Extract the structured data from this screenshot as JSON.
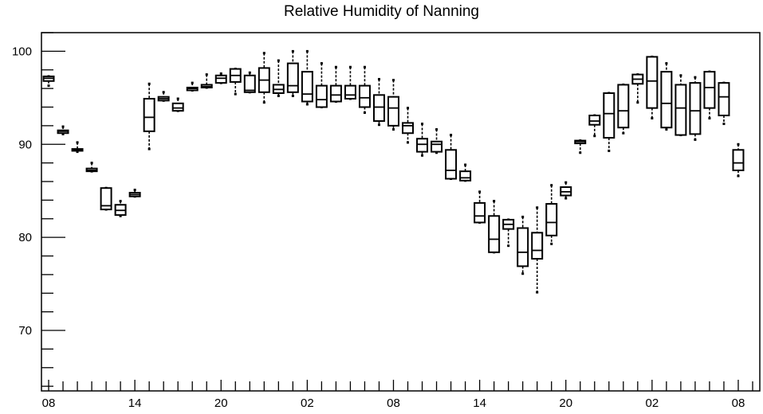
{
  "chart_data": {
    "type": "boxplot",
    "title": "Relative Humidity of Nanning",
    "xlabel": "",
    "ylabel": "",
    "ylim": [
      63.5,
      102
    ],
    "y_major_ticks": [
      70,
      80,
      90,
      100
    ],
    "y_minor_step": 2,
    "x_range": [
      -0.5,
      49.5
    ],
    "x_tick_labels": [
      {
        "x": 0,
        "label": "08"
      },
      {
        "x": 6,
        "label": "14"
      },
      {
        "x": 12,
        "label": "20"
      },
      {
        "x": 18,
        "label": "02"
      },
      {
        "x": 24,
        "label": "08"
      },
      {
        "x": 30,
        "label": "14"
      },
      {
        "x": 36,
        "label": "20"
      },
      {
        "x": 42,
        "label": "02"
      },
      {
        "x": 48,
        "label": "08"
      }
    ],
    "grid": false,
    "boxes": [
      {
        "x": 0,
        "whisker_low": 96.3,
        "q1": 96.8,
        "median": 97.1,
        "q3": 97.3,
        "whisker_high": 97.3
      },
      {
        "x": 1,
        "whisker_low": 91.1,
        "q1": 91.2,
        "median": 91.4,
        "q3": 91.5,
        "whisker_high": 91.9
      },
      {
        "x": 2,
        "whisker_low": 89.2,
        "q1": 89.3,
        "median": 89.4,
        "q3": 89.5,
        "whisker_high": 90.2
      },
      {
        "x": 3,
        "whisker_low": 87.1,
        "q1": 87.1,
        "median": 87.2,
        "q3": 87.4,
        "whisker_high": 88.0
      },
      {
        "x": 4,
        "whisker_low": 83.0,
        "q1": 83.0,
        "median": 83.4,
        "q3": 85.3,
        "whisker_high": 85.3
      },
      {
        "x": 5,
        "whisker_low": 82.3,
        "q1": 82.4,
        "median": 82.9,
        "q3": 83.5,
        "whisker_high": 83.9
      },
      {
        "x": 6,
        "whisker_low": 84.4,
        "q1": 84.4,
        "median": 84.6,
        "q3": 84.8,
        "whisker_high": 85.1
      },
      {
        "x": 7,
        "whisker_low": 89.5,
        "q1": 91.4,
        "median": 92.9,
        "q3": 94.9,
        "whisker_high": 96.5
      },
      {
        "x": 8,
        "whisker_low": 94.7,
        "q1": 94.7,
        "median": 94.9,
        "q3": 95.1,
        "whisker_high": 95.6
      },
      {
        "x": 9,
        "whisker_low": 93.6,
        "q1": 93.6,
        "median": 93.9,
        "q3": 94.4,
        "whisker_high": 94.9
      },
      {
        "x": 10,
        "whisker_low": 95.8,
        "q1": 95.8,
        "median": 96.0,
        "q3": 96.1,
        "whisker_high": 96.6
      },
      {
        "x": 11,
        "whisker_low": 96.1,
        "q1": 96.1,
        "median": 96.2,
        "q3": 96.4,
        "whisker_high": 97.5
      },
      {
        "x": 12,
        "whisker_low": 96.6,
        "q1": 96.6,
        "median": 97.1,
        "q3": 97.4,
        "whisker_high": 97.6
      },
      {
        "x": 13,
        "whisker_low": 95.4,
        "q1": 96.7,
        "median": 97.4,
        "q3": 98.1,
        "whisker_high": 98.1
      },
      {
        "x": 14,
        "whisker_low": 95.6,
        "q1": 95.6,
        "median": 95.8,
        "q3": 97.4,
        "whisker_high": 97.7
      },
      {
        "x": 15,
        "whisker_low": 94.5,
        "q1": 95.6,
        "median": 96.9,
        "q3": 98.2,
        "whisker_high": 99.8
      },
      {
        "x": 16,
        "whisker_low": 95.2,
        "q1": 95.5,
        "median": 95.9,
        "q3": 96.4,
        "whisker_high": 99.0
      },
      {
        "x": 17,
        "whisker_low": 95.2,
        "q1": 95.6,
        "median": 96.3,
        "q3": 98.7,
        "whisker_high": 100.0
      },
      {
        "x": 18,
        "whisker_low": 94.3,
        "q1": 94.6,
        "median": 95.4,
        "q3": 97.8,
        "whisker_high": 100.0
      },
      {
        "x": 19,
        "whisker_low": 94.0,
        "q1": 94.0,
        "median": 94.8,
        "q3": 96.3,
        "whisker_high": 98.7
      },
      {
        "x": 20,
        "whisker_low": 94.6,
        "q1": 94.6,
        "median": 95.3,
        "q3": 96.3,
        "whisker_high": 98.3
      },
      {
        "x": 21,
        "whisker_low": 94.9,
        "q1": 94.9,
        "median": 95.3,
        "q3": 96.3,
        "whisker_high": 98.3
      },
      {
        "x": 22,
        "whisker_low": 93.4,
        "q1": 94.0,
        "median": 95.0,
        "q3": 96.3,
        "whisker_high": 98.3
      },
      {
        "x": 23,
        "whisker_low": 92.1,
        "q1": 92.5,
        "median": 94.0,
        "q3": 95.3,
        "whisker_high": 97.0
      },
      {
        "x": 24,
        "whisker_low": 91.6,
        "q1": 92.0,
        "median": 93.9,
        "q3": 95.1,
        "whisker_high": 96.9
      },
      {
        "x": 25,
        "whisker_low": 90.2,
        "q1": 91.2,
        "median": 92.0,
        "q3": 92.3,
        "whisker_high": 93.9
      },
      {
        "x": 26,
        "whisker_low": 88.8,
        "q1": 89.2,
        "median": 90.0,
        "q3": 90.6,
        "whisker_high": 92.2
      },
      {
        "x": 27,
        "whisker_low": 89.1,
        "q1": 89.2,
        "median": 90.0,
        "q3": 90.3,
        "whisker_high": 91.6
      },
      {
        "x": 28,
        "whisker_low": 86.3,
        "q1": 86.3,
        "median": 87.2,
        "q3": 89.4,
        "whisker_high": 91.0
      },
      {
        "x": 29,
        "whisker_low": 86.1,
        "q1": 86.1,
        "median": 86.4,
        "q3": 87.1,
        "whisker_high": 87.8
      },
      {
        "x": 30,
        "whisker_low": 81.6,
        "q1": 81.6,
        "median": 82.3,
        "q3": 83.7,
        "whisker_high": 84.9
      },
      {
        "x": 31,
        "whisker_low": 78.4,
        "q1": 78.4,
        "median": 79.8,
        "q3": 82.3,
        "whisker_high": 83.9
      },
      {
        "x": 32,
        "whisker_low": 79.1,
        "q1": 80.9,
        "median": 81.4,
        "q3": 81.9,
        "whisker_high": 81.9
      },
      {
        "x": 33,
        "whisker_low": 76.1,
        "q1": 76.9,
        "median": 78.4,
        "q3": 81.0,
        "whisker_high": 82.2
      },
      {
        "x": 34,
        "whisker_low": 74.1,
        "q1": 77.7,
        "median": 78.6,
        "q3": 80.5,
        "whisker_high": 83.2
      },
      {
        "x": 35,
        "whisker_low": 79.3,
        "q1": 80.2,
        "median": 81.6,
        "q3": 83.6,
        "whisker_high": 85.6
      },
      {
        "x": 36,
        "whisker_low": 84.2,
        "q1": 84.5,
        "median": 84.9,
        "q3": 85.4,
        "whisker_high": 85.9
      },
      {
        "x": 37,
        "whisker_low": 89.1,
        "q1": 90.1,
        "median": 90.3,
        "q3": 90.4,
        "whisker_high": 90.4
      },
      {
        "x": 38,
        "whisker_low": 90.9,
        "q1": 92.1,
        "median": 92.5,
        "q3": 93.1,
        "whisker_high": 93.1
      },
      {
        "x": 39,
        "whisker_low": 89.3,
        "q1": 90.7,
        "median": 93.3,
        "q3": 95.5,
        "whisker_high": 95.5
      },
      {
        "x": 40,
        "whisker_low": 91.2,
        "q1": 91.8,
        "median": 93.6,
        "q3": 96.4,
        "whisker_high": 96.4
      },
      {
        "x": 41,
        "whisker_low": 94.5,
        "q1": 96.5,
        "median": 97.0,
        "q3": 97.5,
        "whisker_high": 97.5
      },
      {
        "x": 42,
        "whisker_low": 92.8,
        "q1": 93.9,
        "median": 96.8,
        "q3": 99.4,
        "whisker_high": 99.4
      },
      {
        "x": 43,
        "whisker_low": 91.6,
        "q1": 91.8,
        "median": 94.4,
        "q3": 97.8,
        "whisker_high": 98.7
      },
      {
        "x": 44,
        "whisker_low": 91.0,
        "q1": 91.0,
        "median": 93.9,
        "q3": 96.4,
        "whisker_high": 97.4
      },
      {
        "x": 45,
        "whisker_low": 90.5,
        "q1": 91.1,
        "median": 93.6,
        "q3": 96.6,
        "whisker_high": 97.2
      },
      {
        "x": 46,
        "whisker_low": 92.8,
        "q1": 93.9,
        "median": 96.1,
        "q3": 97.8,
        "whisker_high": 97.8
      },
      {
        "x": 47,
        "whisker_low": 92.2,
        "q1": 93.1,
        "median": 95.1,
        "q3": 96.6,
        "whisker_high": 96.6
      },
      {
        "x": 48,
        "whisker_low": 86.6,
        "q1": 87.2,
        "median": 88.0,
        "q3": 89.4,
        "whisker_high": 90.0
      }
    ]
  }
}
